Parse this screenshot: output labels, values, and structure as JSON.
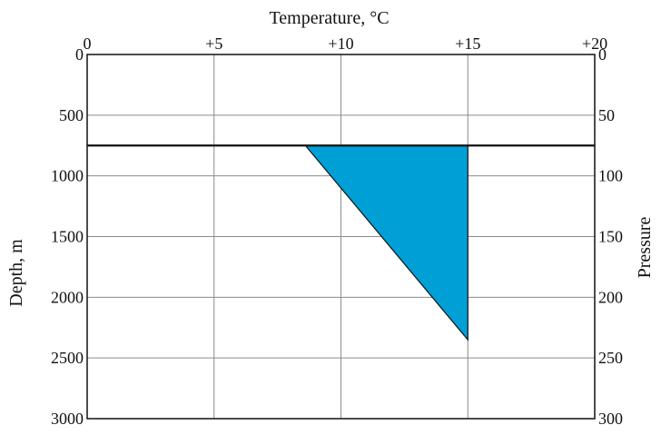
{
  "chart_data": {
    "type": "area",
    "title": "",
    "xlabel": "Temperature, °C",
    "ylabel": "Depth, m",
    "y2label": "Pressure",
    "xlim": [
      0,
      20
    ],
    "ylim": [
      0,
      3000
    ],
    "y2lim": [
      0,
      300
    ],
    "y_inverted": true,
    "grid": true,
    "x_ticks": [
      {
        "value": 0,
        "label": "0"
      },
      {
        "value": 5,
        "label": "+5"
      },
      {
        "value": 10,
        "label": "+10"
      },
      {
        "value": 15,
        "label": "+15"
      },
      {
        "value": 20,
        "label": "+20"
      }
    ],
    "y_ticks": [
      {
        "value": 0,
        "label": "0"
      },
      {
        "value": 500,
        "label": "500"
      },
      {
        "value": 1000,
        "label": "1000"
      },
      {
        "value": 1500,
        "label": "1500"
      },
      {
        "value": 2000,
        "label": "2000"
      },
      {
        "value": 2500,
        "label": "2500"
      },
      {
        "value": 3000,
        "label": "3000"
      }
    ],
    "y2_ticks": [
      {
        "value": 0,
        "label": "0"
      },
      {
        "value": 50,
        "label": "50"
      },
      {
        "value": 100,
        "label": "100"
      },
      {
        "value": 150,
        "label": "150"
      },
      {
        "value": 200,
        "label": "200"
      },
      {
        "value": 250,
        "label": "250"
      },
      {
        "value": 300,
        "label": "300"
      }
    ],
    "horizontal_line": {
      "y": 750
    },
    "region": {
      "color": "#00a0d6",
      "points": [
        {
          "x": 8.6,
          "y": 750
        },
        {
          "x": 15,
          "y": 750
        },
        {
          "x": 15,
          "y": 2350
        }
      ]
    }
  }
}
